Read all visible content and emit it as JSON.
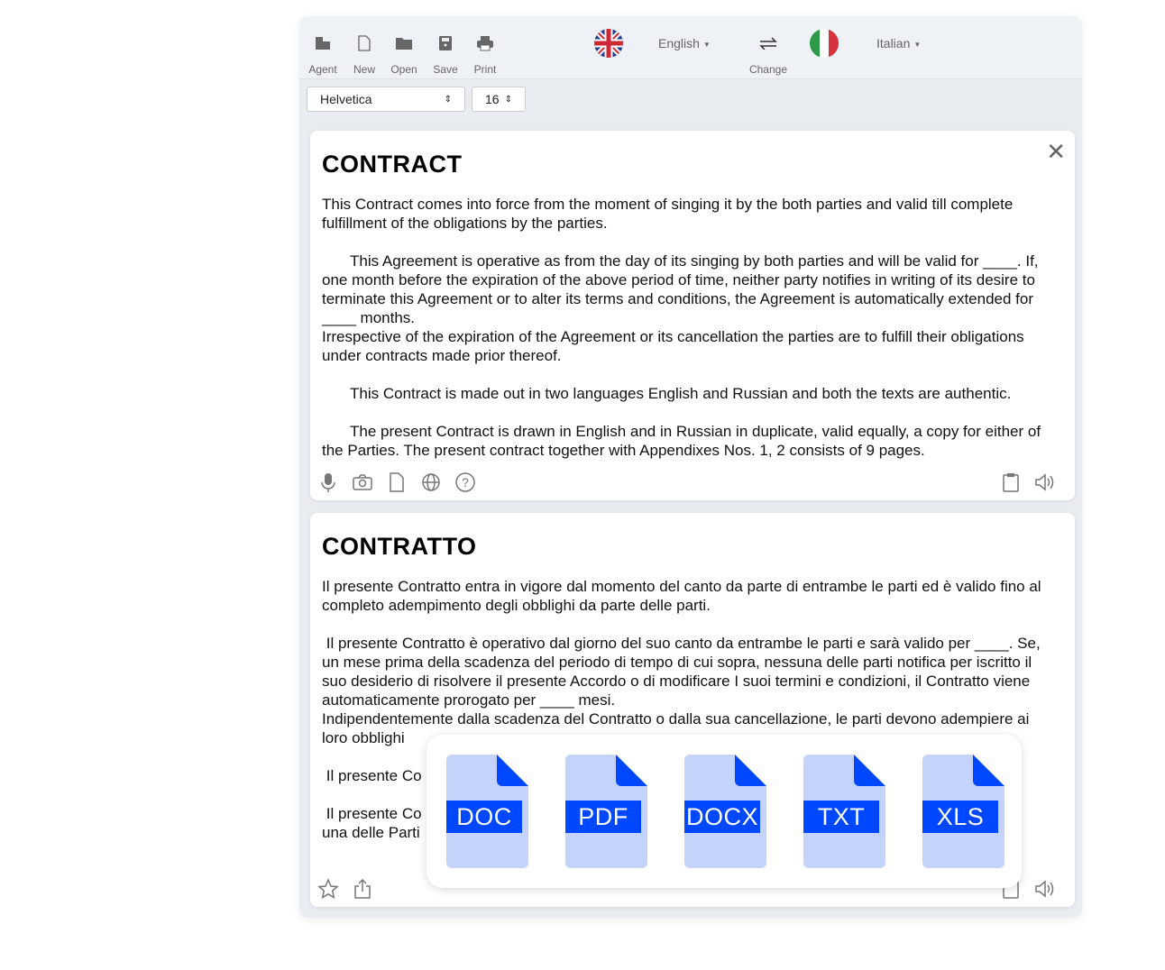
{
  "toolbar": {
    "agent": "Agent",
    "new": "New",
    "open": "Open",
    "save": "Save",
    "print": "Print",
    "source_lang": "English",
    "change": "Change",
    "target_lang": "Italian"
  },
  "font": {
    "family": "Helvetica",
    "size": "16"
  },
  "source": {
    "title": "CONTRACT",
    "paragraphs": [
      "This Contract comes into force from the moment of singing it by the both parties and valid till complete fulfillment of the obligations by the parties.",
      "This Agreement is operative as from the day of its singing by both parties and will be valid for ____. If, one month before the expiration of the above period of time, neither party notifies in writing of its desire to terminate this Agreement or to alter its terms and conditions, the Agreement is automatically extended for ____ months.",
      "Irrespective of the expiration of the Agreement or its cancellation the parties are to fulfill their obligations under contracts made prior thereof.",
      "This Contract is made out in two languages English and Russian and both the texts are authentic.",
      "The present Contract is drawn in English and in Russian in duplicate, valid equally, a copy for either of the Parties. The present contract together with Appendixes Nos. 1, 2 consists of 9 pages."
    ]
  },
  "target": {
    "title": "CONTRATTO",
    "paragraphs": [
      "Il presente Contratto entra in vigore dal momento del canto da parte di entrambe le parti ed è valido fino al completo adempimento degli obblighi da parte delle parti.",
      " Il presente Contratto è operativo dal giorno del suo canto da entrambe le parti e sarà valido per ____. Se, un mese prima della scadenza del periodo di tempo di cui sopra, nessuna delle parti notifica per iscritto il suo desiderio di risolvere il presente Accordo o di modificare I suoi termini e condizioni, il Contratto viene automaticamente prorogato per ____ mesi.",
      "Indipendentemente dalla scadenza del Contratto o dalla sua cancellazione, le parti devono adempiere ai loro obblighi",
      " Il presente Co",
      " Il presente Co",
      "una delle Parti"
    ]
  },
  "export_formats": [
    "DOC",
    "PDF",
    "DOCX",
    "TXT",
    "XLS"
  ],
  "colors": {
    "file_bg": "#c4d3fb",
    "file_accent": "#0048ff"
  }
}
